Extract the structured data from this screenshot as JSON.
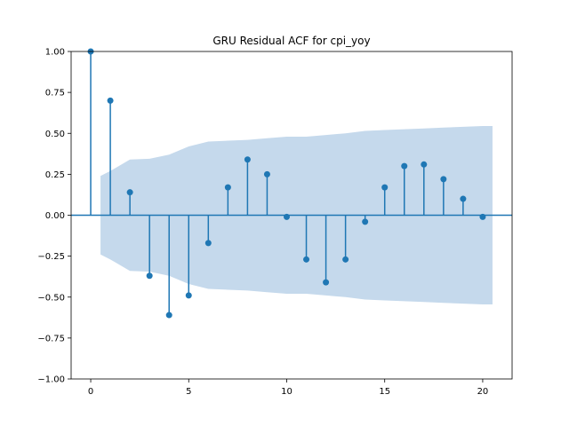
{
  "chart_data": {
    "type": "stem",
    "title": "GRU Residual ACF for cpi_yoy",
    "xlabel": "",
    "ylabel": "",
    "xlim": [
      -1,
      21.5
    ],
    "ylim": [
      -1.0,
      1.0
    ],
    "x_ticks": [
      0,
      5,
      10,
      15,
      20
    ],
    "y_ticks": [
      "1.00",
      "0.75",
      "0.50",
      "0.25",
      "0.00",
      "-0.25",
      "-0.50",
      "-0.75",
      "-1.00"
    ],
    "lags": [
      0,
      1,
      2,
      3,
      4,
      5,
      6,
      7,
      8,
      9,
      10,
      11,
      12,
      13,
      14,
      15,
      16,
      17,
      18,
      19,
      20
    ],
    "acf": [
      1.0,
      0.7,
      0.14,
      -0.37,
      -0.61,
      -0.49,
      -0.17,
      0.17,
      0.34,
      0.25,
      -0.01,
      -0.27,
      -0.41,
      -0.27,
      -0.04,
      0.17,
      0.3,
      0.31,
      0.22,
      0.1,
      -0.01
    ],
    "confidence_band": {
      "x": [
        0.5,
        1,
        2,
        3,
        4,
        5,
        6,
        7,
        8,
        9,
        10,
        11,
        12,
        13,
        14,
        15,
        16,
        17,
        18,
        19,
        20,
        20.5
      ],
      "upper": [
        0.24,
        0.27,
        0.34,
        0.345,
        0.37,
        0.42,
        0.45,
        0.455,
        0.46,
        0.47,
        0.48,
        0.48,
        0.49,
        0.5,
        0.515,
        0.52,
        0.525,
        0.53,
        0.535,
        0.54,
        0.545,
        0.545
      ]
    },
    "grid": false,
    "colors": {
      "stem": "#1f77b4",
      "band": "#c5d9ec",
      "baseline": "#1f77b4"
    }
  }
}
